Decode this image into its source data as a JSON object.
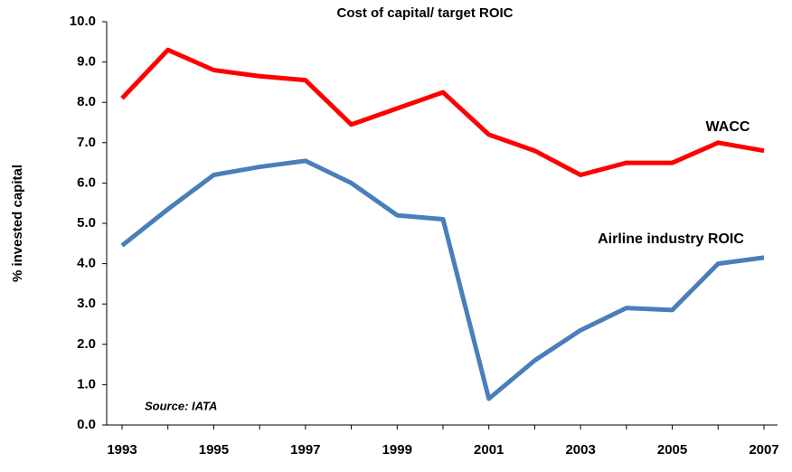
{
  "chart_data": {
    "type": "line",
    "title": "Cost of capital/ target ROIC",
    "y_label": "% invested capital",
    "annotation": "Source: IATA",
    "categories": [
      "1993",
      null,
      "1995",
      null,
      "1997",
      null,
      "1999",
      null,
      "2001",
      null,
      "2003",
      null,
      "2005",
      null,
      "2007"
    ],
    "series": [
      {
        "name": "WACC",
        "color": "#ff0000",
        "values": [
          8.1,
          9.3,
          8.8,
          8.65,
          8.55,
          7.45,
          7.85,
          8.25,
          7.2,
          6.8,
          6.2,
          6.5,
          6.5,
          7.0,
          6.8
        ]
      },
      {
        "name": "Airline industry ROIC",
        "color": "#4a7ebb",
        "values": [
          4.45,
          5.35,
          6.2,
          6.4,
          6.55,
          6.0,
          5.2,
          5.1,
          0.65,
          1.6,
          2.35,
          2.9,
          2.85,
          4.0,
          4.15
        ]
      }
    ],
    "ylim": [
      0,
      10
    ],
    "yticks": [
      {
        "value": 0,
        "label": "0.0"
      },
      {
        "value": 1,
        "label": "1.0"
      },
      {
        "value": 2,
        "label": "2.0"
      },
      {
        "value": 3,
        "label": "3.0"
      },
      {
        "value": 4,
        "label": "4.0"
      },
      {
        "value": 5,
        "label": "5.0"
      },
      {
        "value": 6,
        "label": "6.0"
      },
      {
        "value": 7,
        "label": "7.0"
      },
      {
        "value": 8,
        "label": "8.0"
      },
      {
        "value": 9,
        "label": "9.0"
      },
      {
        "value": 10,
        "label": "10.0"
      }
    ],
    "grid": false
  }
}
